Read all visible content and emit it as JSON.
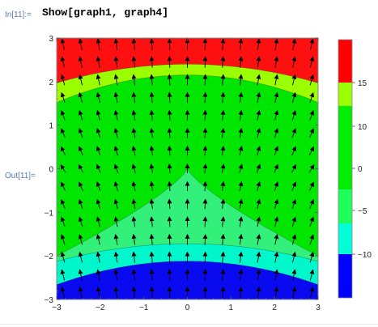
{
  "cell": {
    "in_label": "In[11]:=",
    "input_code": "Show[graph1, graph4]",
    "out_label": "Out[11]="
  },
  "plot": {
    "x_ticks": [
      "-3",
      "-2",
      "-1",
      "0",
      "1",
      "2",
      "3"
    ],
    "y_ticks": [
      "3",
      "2",
      "1",
      "0",
      "-1",
      "-2",
      "-3"
    ],
    "xlim": [
      -3,
      3
    ],
    "ylim": [
      -3,
      3
    ],
    "legend_ticks": [
      "15",
      "10",
      "5",
      "0",
      "-5",
      "-10"
    ],
    "legend_colors": [
      "#ff0000",
      "#9cff00",
      "#00ef00",
      "#1fff5c",
      "#00ffd8",
      "#0000ff"
    ],
    "region_colors": {
      "top": "#ff1010",
      "upper_band": "#9cff00",
      "main": "#00e600",
      "lower": "#33f07a",
      "aqua": "#00f7cc",
      "bottom": "#0a0af0"
    }
  }
}
